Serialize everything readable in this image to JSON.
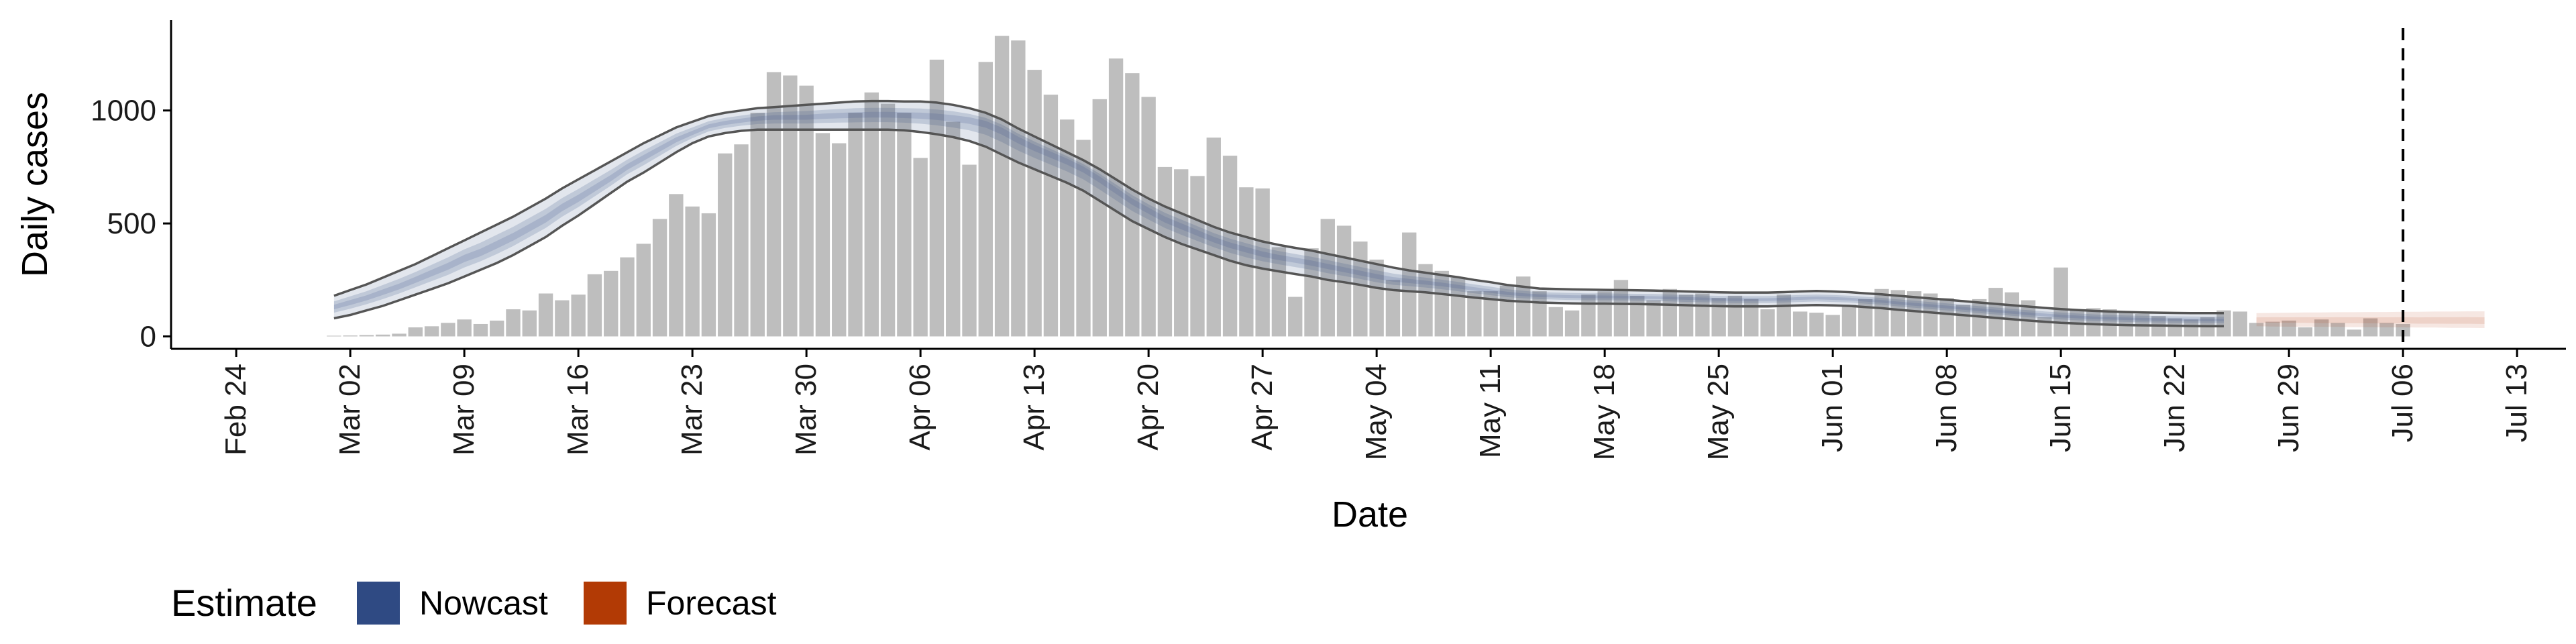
{
  "chart_data": {
    "type": "bar",
    "ylabel": "Daily cases",
    "xlabel": "Date",
    "ylim": [
      -55,
      1400
    ],
    "xlim": [
      "2020-02-20",
      "2020-07-16"
    ],
    "y_ticks": [
      0,
      500,
      1000
    ],
    "y_tick_labels": [
      "0",
      "500",
      "1000"
    ],
    "x_ticks": [
      "2020-02-24",
      "2020-03-02",
      "2020-03-09",
      "2020-03-16",
      "2020-03-23",
      "2020-03-30",
      "2020-04-06",
      "2020-04-13",
      "2020-04-20",
      "2020-04-27",
      "2020-05-04",
      "2020-05-11",
      "2020-05-18",
      "2020-05-25",
      "2020-06-01",
      "2020-06-08",
      "2020-06-15",
      "2020-06-22",
      "2020-06-29",
      "2020-07-06",
      "2020-07-13"
    ],
    "x_tick_labels": [
      "Feb 24",
      "Mar 02",
      "Mar 09",
      "Mar 16",
      "Mar 23",
      "Mar 30",
      "Apr 06",
      "Apr 13",
      "Apr 20",
      "Apr 27",
      "May 04",
      "May 11",
      "May 18",
      "May 25",
      "Jun 01",
      "Jun 08",
      "Jun 15",
      "Jun 22",
      "Jun 29",
      "Jul 06",
      "Jul 13"
    ],
    "bars": {
      "start_date": "2020-03-01",
      "values": [
        3,
        4,
        6,
        8,
        12,
        40,
        45,
        60,
        75,
        55,
        70,
        120,
        115,
        190,
        160,
        185,
        275,
        290,
        350,
        410,
        520,
        630,
        575,
        545,
        810,
        850,
        990,
        1170,
        1155,
        1110,
        900,
        855,
        990,
        1080,
        1030,
        990,
        790,
        1225,
        950,
        760,
        1215,
        1330,
        1310,
        1180,
        1070,
        960,
        870,
        1050,
        1230,
        1165,
        1060,
        750,
        740,
        710,
        880,
        800,
        660,
        655,
        395,
        175,
        390,
        520,
        490,
        420,
        340,
        250,
        460,
        320,
        290,
        260,
        200,
        200,
        225,
        265,
        200,
        130,
        115,
        185,
        200,
        250,
        180,
        160,
        210,
        185,
        190,
        170,
        180,
        165,
        120,
        185,
        110,
        105,
        95,
        140,
        165,
        210,
        205,
        200,
        190,
        170,
        140,
        165,
        215,
        195,
        160,
        85,
        305,
        120,
        125,
        120,
        110,
        100,
        90,
        80,
        75,
        85,
        115,
        110,
        60,
        65,
        70,
        40,
        75,
        60,
        30,
        80,
        60,
        55
      ],
      "color": "#bebebe"
    },
    "nowcast": {
      "name": "Nowcast",
      "start_date": "2020-03-01",
      "median": [
        130,
        150,
        170,
        195,
        220,
        250,
        280,
        310,
        345,
        370,
        405,
        440,
        480,
        520,
        570,
        610,
        655,
        700,
        750,
        790,
        830,
        870,
        900,
        930,
        945,
        955,
        965,
        970,
        970,
        970,
        975,
        978,
        980,
        982,
        982,
        980,
        978,
        974,
        968,
        960,
        945,
        915,
        875,
        840,
        810,
        780,
        745,
        700,
        650,
        600,
        560,
        520,
        490,
        460,
        430,
        405,
        385,
        365,
        350,
        338,
        325,
        310,
        295,
        280,
        265,
        252,
        245,
        238,
        230,
        220,
        210,
        200,
        190,
        184,
        180,
        178,
        176,
        175,
        175,
        174,
        173,
        172,
        170,
        168,
        166,
        164,
        163,
        163,
        163,
        165,
        168,
        170,
        168,
        165,
        160,
        155,
        148,
        142,
        136,
        130,
        124,
        118,
        112,
        106,
        100,
        95,
        90,
        86,
        82,
        80,
        78,
        76,
        75,
        74,
        73,
        72,
        72
      ],
      "lower90": [
        80,
        95,
        115,
        135,
        160,
        185,
        210,
        235,
        265,
        295,
        325,
        360,
        400,
        440,
        490,
        535,
        585,
        635,
        685,
        725,
        770,
        815,
        855,
        885,
        900,
        910,
        915,
        915,
        915,
        915,
        915,
        915,
        915,
        915,
        915,
        912,
        905,
        895,
        882,
        865,
        840,
        805,
        770,
        740,
        710,
        680,
        645,
        600,
        555,
        510,
        475,
        440,
        410,
        385,
        360,
        335,
        315,
        300,
        288,
        276,
        265,
        250,
        240,
        228,
        215,
        205,
        200,
        195,
        188,
        180,
        172,
        165,
        158,
        154,
        150,
        148,
        146,
        145,
        145,
        144,
        143,
        142,
        140,
        138,
        136,
        134,
        133,
        133,
        133,
        135,
        137,
        139,
        137,
        135,
        130,
        125,
        118,
        112,
        106,
        100,
        94,
        88,
        82,
        76,
        70,
        65,
        60,
        57,
        54,
        52,
        50,
        49,
        48,
        47,
        46,
        45,
        45
      ],
      "upper90": [
        180,
        205,
        230,
        260,
        290,
        320,
        355,
        390,
        425,
        460,
        495,
        530,
        570,
        610,
        655,
        695,
        735,
        775,
        815,
        855,
        890,
        925,
        950,
        975,
        990,
        1000,
        1010,
        1015,
        1020,
        1025,
        1030,
        1035,
        1040,
        1042,
        1042,
        1040,
        1040,
        1035,
        1025,
        1010,
        990,
        960,
        920,
        885,
        850,
        815,
        780,
        740,
        695,
        650,
        610,
        575,
        545,
        515,
        485,
        460,
        440,
        420,
        405,
        392,
        380,
        365,
        350,
        335,
        320,
        305,
        292,
        282,
        272,
        262,
        250,
        240,
        228,
        220,
        212,
        210,
        208,
        207,
        206,
        205,
        204,
        203,
        201,
        199,
        197,
        195,
        194,
        194,
        194,
        196,
        199,
        201,
        199,
        196,
        191,
        186,
        180,
        174,
        168,
        162,
        156,
        150,
        144,
        138,
        132,
        126,
        121,
        117,
        113,
        110,
        108,
        106,
        105,
        104,
        103,
        103,
        103
      ],
      "color": "#3b5488"
    },
    "forecast": {
      "name": "Forecast",
      "start_date": "2020-06-27",
      "median": [
        72,
        72,
        71,
        71,
        70,
        70,
        70,
        69,
        69,
        69,
        68,
        68,
        68,
        68,
        67
      ],
      "lower90": [
        45,
        44,
        43,
        43,
        42,
        42,
        41,
        41,
        40,
        40,
        39,
        39,
        38,
        38,
        37
      ],
      "upper90": [
        103,
        104,
        105,
        106,
        106,
        107,
        107,
        108,
        108,
        109,
        109,
        110,
        110,
        111,
        111
      ],
      "color": "#b43c0f"
    },
    "vline_date": "2020-07-06",
    "grid": false,
    "legend": {
      "position": "bottom-left",
      "title": "Estimate",
      "entries": [
        {
          "label": "Nowcast",
          "color": "#2f4a83"
        },
        {
          "label": "Forecast",
          "color": "#b23a05"
        }
      ]
    }
  }
}
